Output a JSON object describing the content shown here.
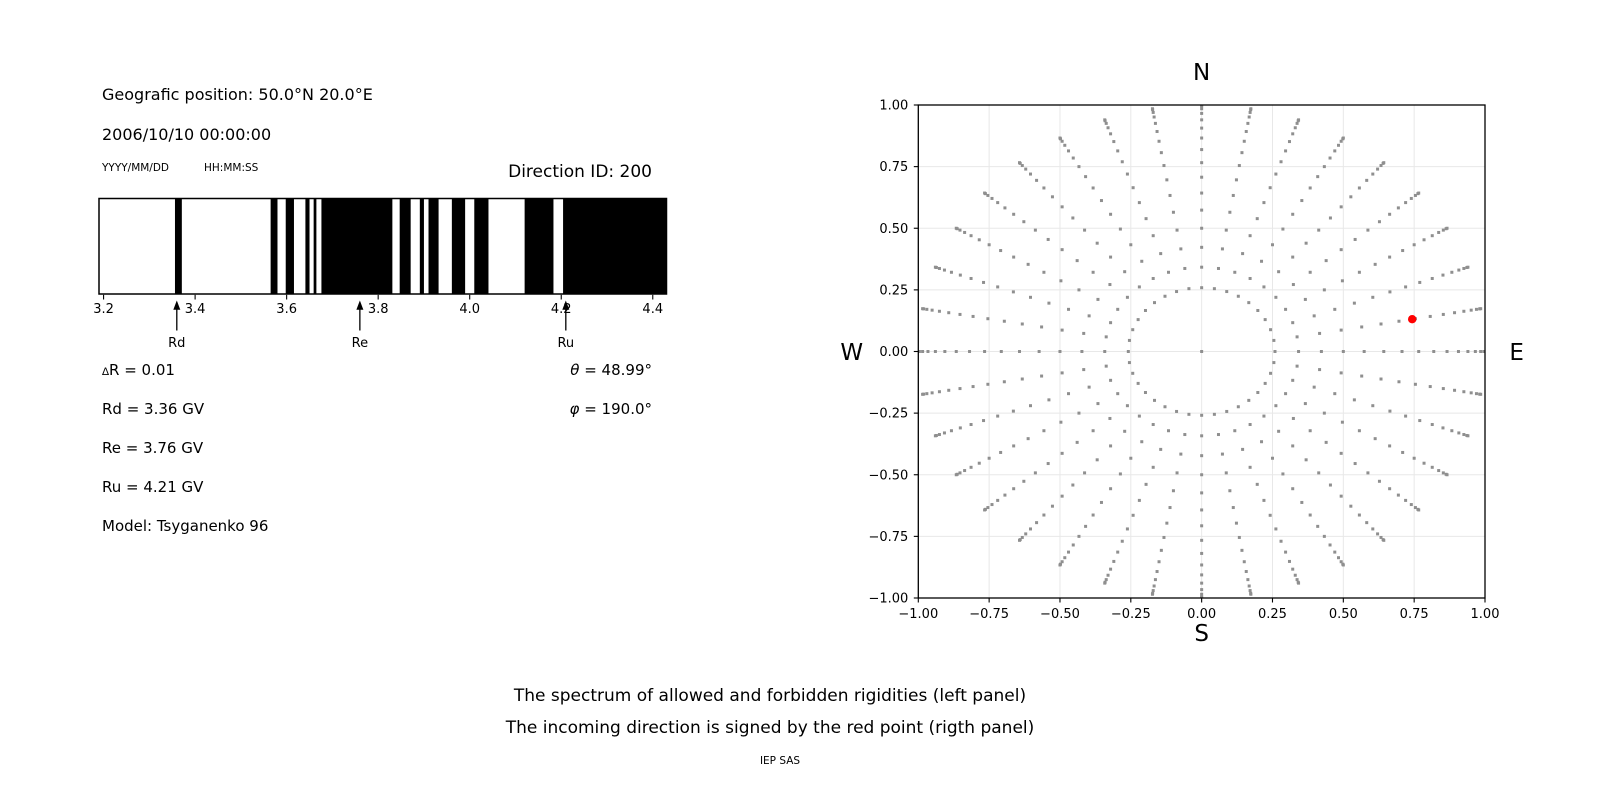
{
  "header": {
    "geo_position": "Geografic position: 50.0°N 20.0°E",
    "datetime": "2006/10/10 00:00:00",
    "date_format": "YYYY/MM/DD",
    "time_format": "HH:MM:SS",
    "direction_id": "Direction ID: 200"
  },
  "left_info": {
    "rows": [
      "∆R = 0.01",
      "Rd = 3.36 GV",
      "Re = 3.76 GV",
      "Ru = 4.21 GV",
      "Model: Tsyganenko 96"
    ],
    "angles": [
      "θ = 48.99°",
      "φ = 190.0°"
    ]
  },
  "caption": {
    "line1": "The spectrum of allowed and forbidden rigidities (left panel)",
    "line2": "The incoming direction is signed by the red point (rigth panel)",
    "credit": "IEP SAS"
  },
  "chart_data": [
    {
      "type": "barcode",
      "description": "Spectrum of allowed (black) and forbidden (white) rigidities in GV",
      "x_range_gv": [
        3.19,
        4.43
      ],
      "x_ticks": [
        3.2,
        3.4,
        3.6,
        3.8,
        4.0,
        4.2,
        4.4
      ],
      "x_tick_labels": [
        "3.2",
        "3.4",
        "3.6",
        "3.8",
        "4.0",
        "4.2",
        "4.4"
      ],
      "allowed_color": "#000000",
      "forbidden_color": "#ffffff",
      "frame_color": "#000000",
      "allowed_bands_gv": [
        [
          3.356,
          3.371
        ],
        [
          3.565,
          3.58
        ],
        [
          3.598,
          3.616
        ],
        [
          3.641,
          3.65
        ],
        [
          3.659,
          3.665
        ],
        [
          3.676,
          3.831
        ],
        [
          3.847,
          3.871
        ],
        [
          3.891,
          3.9
        ],
        [
          3.91,
          3.932
        ],
        [
          3.961,
          3.99
        ],
        [
          4.01,
          4.041
        ],
        [
          4.12,
          4.183
        ],
        [
          4.204,
          4.43
        ]
      ],
      "cutoff_markers": [
        {
          "label": "Rd",
          "gv": 3.36
        },
        {
          "label": "Re",
          "gv": 3.76
        },
        {
          "label": "Ru",
          "gv": 4.21
        }
      ]
    },
    {
      "type": "scatter",
      "description": "Grid of incoming directions; radius = sin(zenith), azimuth every 10 deg; red point marks the incoming direction",
      "compass_labels": {
        "top": "N",
        "bottom": "S",
        "left": "W",
        "right": "E"
      },
      "xlim": [
        -1,
        1
      ],
      "ylim": [
        -1,
        1
      ],
      "tick_values": [
        -1,
        -0.75,
        -0.5,
        -0.25,
        0,
        0.25,
        0.5,
        0.75,
        1
      ],
      "tick_labels": [
        "−1.00",
        "−0.75",
        "−0.50",
        "−0.25",
        "0.00",
        "0.25",
        "0.50",
        "0.75",
        "1.00"
      ],
      "grid": true,
      "grid_color": "#e8e8e8",
      "frame_color": "#000000",
      "dot_color": "#8f8f8f",
      "direction_grid": {
        "azimuth_start_deg": 0,
        "azimuth_step_deg": 10,
        "azimuth_count": 36,
        "zenith_start_deg": 15,
        "zenith_end_deg": 90,
        "zenith_step_deg": 5,
        "radius_rule": "sin(zenith)",
        "center_dot": true
      },
      "red_point": {
        "x": 0.743,
        "y": 0.131,
        "azimuth_deg": 10,
        "zenith_deg": 48.99,
        "color": "#ff0000"
      }
    }
  ]
}
